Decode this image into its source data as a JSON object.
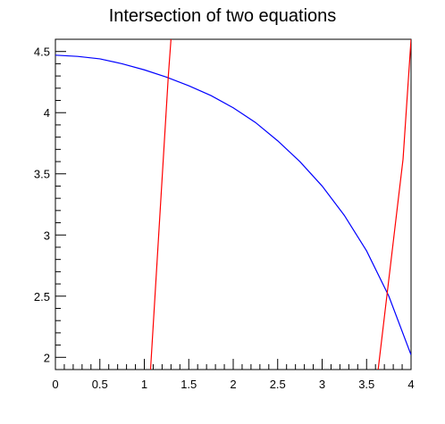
{
  "chart_data": {
    "type": "line",
    "title": "Intersection of two equations",
    "xlabel": "",
    "ylabel": "",
    "xlim": [
      0,
      4
    ],
    "ylim": [
      1.9,
      4.6
    ],
    "grid": false,
    "legend": "none",
    "x_ticks": [
      {
        "value": 0,
        "label": "0"
      },
      {
        "value": 0.5,
        "label": "0.5"
      },
      {
        "value": 1,
        "label": "1"
      },
      {
        "value": 1.5,
        "label": "1.5"
      },
      {
        "value": 2,
        "label": "2"
      },
      {
        "value": 2.5,
        "label": "2.5"
      },
      {
        "value": 3,
        "label": "3"
      },
      {
        "value": 3.5,
        "label": "3.5"
      },
      {
        "value": 4,
        "label": "4"
      }
    ],
    "y_ticks": [
      {
        "value": 2,
        "label": "2"
      },
      {
        "value": 2.5,
        "label": "2.5"
      },
      {
        "value": 3,
        "label": "3"
      },
      {
        "value": 3.5,
        "label": "3.5"
      },
      {
        "value": 4,
        "label": "4"
      },
      {
        "value": 4.5,
        "label": "4.5"
      }
    ],
    "series": [
      {
        "color": "#0000ff",
        "x": [
          0,
          0.25,
          0.5,
          0.75,
          1.0,
          1.25,
          1.5,
          1.75,
          2.0,
          2.25,
          2.5,
          2.75,
          3.0,
          3.25,
          3.5,
          3.75,
          4.0
        ],
        "y": [
          4.47,
          4.46,
          4.44,
          4.4,
          4.35,
          4.29,
          4.22,
          4.14,
          4.04,
          3.92,
          3.77,
          3.6,
          3.4,
          3.16,
          2.87,
          2.5,
          2.02
        ]
      },
      {
        "color": "#ff0000",
        "x": [
          1.07,
          1.12,
          1.17,
          1.22,
          1.27,
          1.3
        ],
        "y": [
          1.9,
          2.5,
          3.1,
          3.7,
          4.3,
          4.6
        ]
      },
      {
        "color": "#ff0000",
        "x": [
          3.63,
          3.7,
          3.77,
          3.84,
          3.91,
          4.0
        ],
        "y": [
          1.9,
          2.33,
          2.76,
          3.19,
          3.62,
          4.6
        ]
      }
    ]
  }
}
